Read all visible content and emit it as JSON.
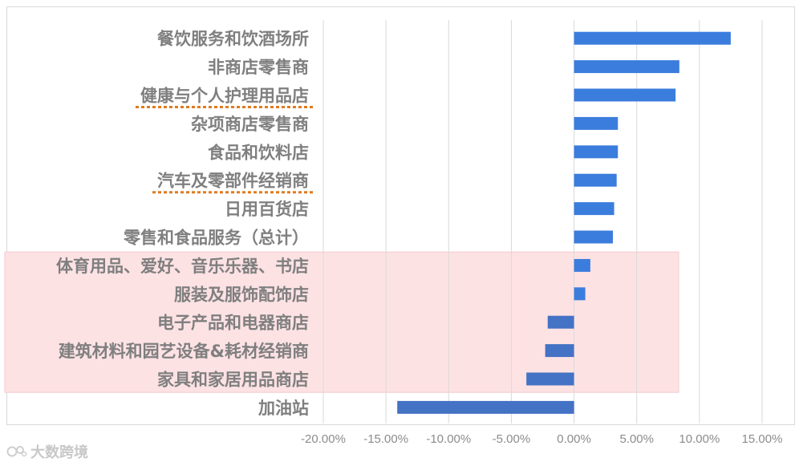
{
  "chart_data": {
    "type": "bar",
    "orientation": "horizontal",
    "categories": [
      "餐饮服务和饮酒场所",
      "非商店零售商",
      "健康与个人护理用品店",
      "杂项商店零售商",
      "食品和饮料店",
      "汽车及零部件经销商",
      "日用百货店",
      "零售和食品服务（总计）",
      "体育用品、爱好、音乐乐器、书店",
      "服装及服饰配饰店",
      "电子产品和电器商店",
      "建筑材料和园艺设备&耗材经销商",
      "家具和家居用品商店",
      "加油站"
    ],
    "values": [
      12.5,
      8.4,
      8.1,
      3.5,
      3.5,
      3.4,
      3.2,
      3.1,
      1.3,
      0.9,
      -2.1,
      -2.3,
      -3.8,
      -14.1
    ],
    "xlim": [
      -20,
      15
    ],
    "xticks": [
      -20,
      -15,
      -10,
      -5,
      0,
      5,
      10,
      15
    ],
    "xtick_labels": [
      "-20.00%",
      "-15.00%",
      "-10.00%",
      "-5.00%",
      "0.00%",
      "5.00%",
      "10.00%",
      "15.00%"
    ],
    "grid": true,
    "title": "",
    "xlabel": "",
    "ylabel": "",
    "colors": {
      "positive_bar": "#3b7ddd",
      "negative_bar": "#4472c4",
      "highlight_band": "#fde2e4",
      "underline": "#e07b20",
      "category_text": "#7f7f7f",
      "tick_text": "#8c8c8c",
      "grid": "#d9d9d9"
    },
    "highlight_range": [
      "体育用品、爱好、音乐乐器、书店",
      "家具和家居用品商店"
    ],
    "underlined_categories": [
      "健康与个人护理用品店",
      "汽车及零部件经销商"
    ]
  },
  "watermark": {
    "text": "大数跨境",
    "icon": "logo-icon"
  }
}
